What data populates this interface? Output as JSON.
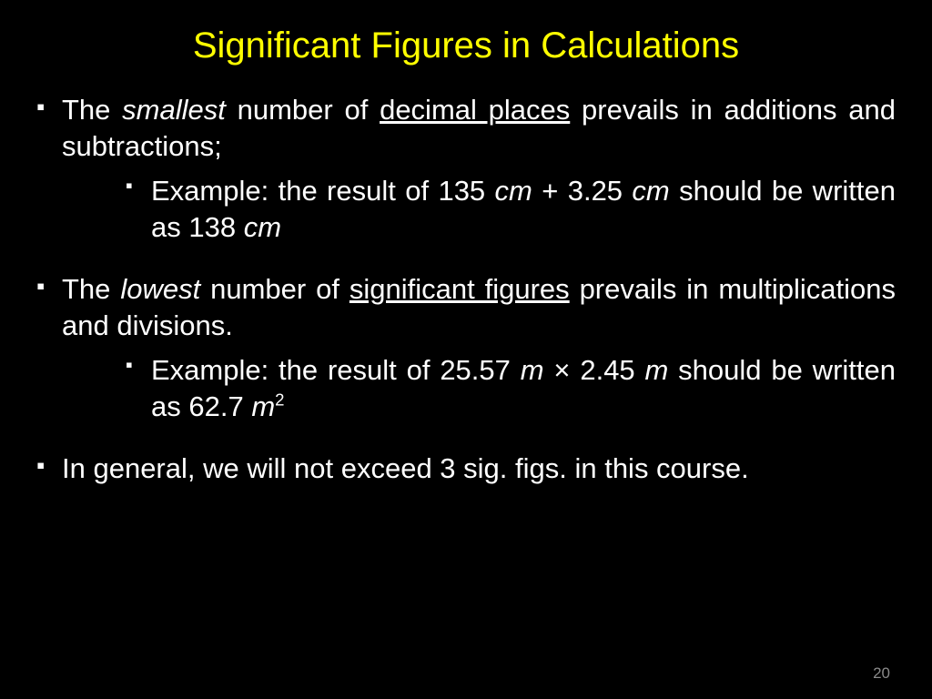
{
  "title": {
    "text": "Significant Figures in Calculations",
    "color": "#ffff00"
  },
  "bullets": [
    {
      "pre": "The ",
      "em": "smallest",
      "mid": " number of ",
      "ul": "decimal places",
      "post": " prevails in additions and subtractions;",
      "sub": {
        "pre": "Example: the result of 135 ",
        "u1": "cm",
        "mid1": " + 3.25 ",
        "u2": "cm",
        "mid2": " should be written as 138 ",
        "u3": "cm"
      }
    },
    {
      "pre": "The ",
      "em": "lowest",
      "mid": " number of ",
      "ul": "significant figures",
      "post": " prevails in multiplications and divisions.",
      "sub": {
        "pre": "Example: the result of 25.57 ",
        "u1": "m",
        "mid1": " × 2.45 ",
        "u2": "m",
        "mid2": " should be written as 62.7 ",
        "u3": "m",
        "sup": "2"
      }
    },
    {
      "plain": "In general, we will not exceed 3 sig. figs. in this course."
    }
  ],
  "page_number": "20",
  "colors": {
    "background": "#000000",
    "text": "#ffffff",
    "title": "#ffff00",
    "page_num": "#8a8a8a"
  }
}
